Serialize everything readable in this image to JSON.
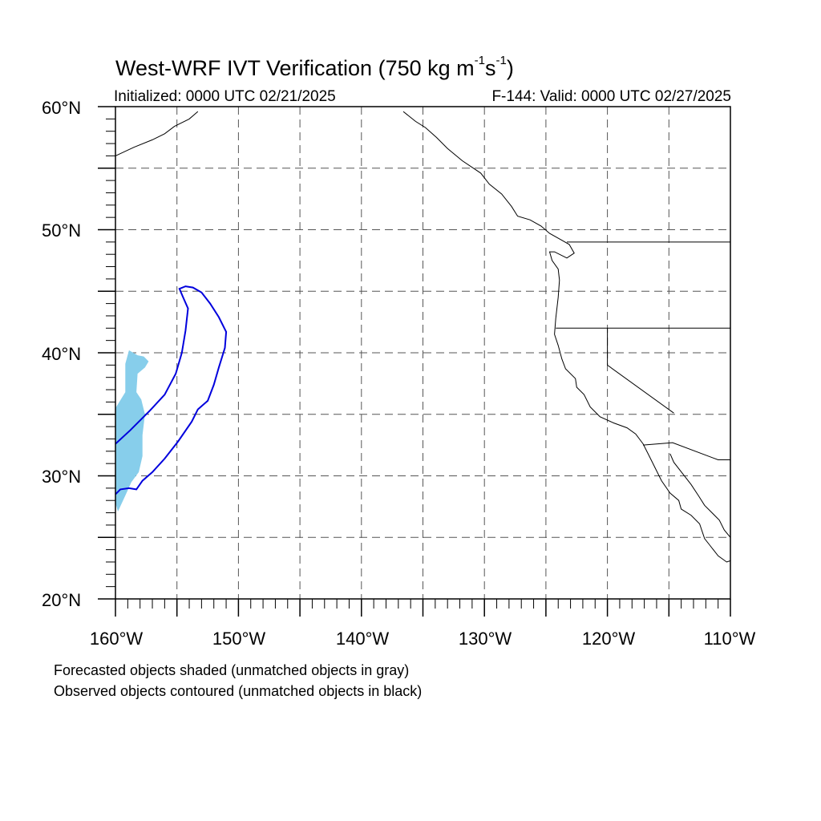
{
  "title": {
    "text": "West-WRF IVT Verification (750 kg m",
    "exp1": "-1",
    "mid": "s",
    "exp2": "-1",
    "end": ")"
  },
  "initialized": "Initialized: 0000 UTC 02/21/2025",
  "valid": "F-144: Valid: 0000 UTC 02/27/2025",
  "lat_labels": [
    "60°N",
    "50°N",
    "40°N",
    "30°N",
    "20°N"
  ],
  "lon_labels": [
    "160°W",
    "150°W",
    "140°W",
    "130°W",
    "120°W",
    "110°W"
  ],
  "notes": [
    "Forecasted objects shaded (unmatched objects in gray)",
    "Observed objects contoured (unmatched objects in black)"
  ],
  "map": {
    "lon_range": [
      -160,
      -110
    ],
    "lat_range": [
      20,
      60
    ],
    "forecast_color": "#87ceeb",
    "observed_color": "#0000dd",
    "grid": true,
    "forecast_object": [
      [
        -158.9,
        40.2
      ],
      [
        -158.2,
        39.8
      ],
      [
        -157.7,
        39.7
      ],
      [
        -157.3,
        39.3
      ],
      [
        -157.6,
        38.8
      ],
      [
        -158.2,
        38.3
      ],
      [
        -158.3,
        36.8
      ],
      [
        -157.9,
        36.2
      ],
      [
        -157.6,
        35.0
      ],
      [
        -157.8,
        33.3
      ],
      [
        -157.8,
        31.6
      ],
      [
        -158.1,
        30.3
      ],
      [
        -158.7,
        29.5
      ],
      [
        -159.2,
        28.4
      ],
      [
        -159.8,
        27.1
      ],
      [
        -160,
        27.8
      ],
      [
        -160,
        35.5
      ],
      [
        -159.2,
        36.8
      ],
      [
        -159.2,
        39.1
      ]
    ],
    "observed_object": [
      [
        -160,
        32.6
      ],
      [
        -158.8,
        33.7
      ],
      [
        -157.2,
        35.3
      ],
      [
        -156.0,
        36.6
      ],
      [
        -155.1,
        38.3
      ],
      [
        -154.6,
        40.0
      ],
      [
        -154.3,
        41.8
      ],
      [
        -154.1,
        43.6
      ],
      [
        -154.5,
        44.5
      ],
      [
        -154.8,
        45.2
      ],
      [
        -154.3,
        45.4
      ],
      [
        -153.7,
        45.3
      ],
      [
        -153.0,
        44.9
      ],
      [
        -152.3,
        44.0
      ],
      [
        -151.6,
        42.9
      ],
      [
        -151.0,
        41.7
      ],
      [
        -151.1,
        40.4
      ],
      [
        -151.6,
        38.8
      ],
      [
        -152.0,
        37.4
      ],
      [
        -152.5,
        36.1
      ],
      [
        -153.3,
        35.4
      ],
      [
        -153.8,
        34.4
      ],
      [
        -154.9,
        32.8
      ],
      [
        -156.0,
        31.4
      ],
      [
        -157.0,
        30.3
      ],
      [
        -157.8,
        29.6
      ],
      [
        -158.3,
        28.9
      ],
      [
        -158.9,
        29.0
      ],
      [
        -159.6,
        28.9
      ],
      [
        -160,
        28.5
      ]
    ],
    "coastline_mainland": [
      [
        -136.6,
        59.6
      ],
      [
        -135.6,
        58.8
      ],
      [
        -134.8,
        58.3
      ],
      [
        -133.9,
        57.5
      ],
      [
        -133.0,
        56.6
      ],
      [
        -131.8,
        55.6
      ],
      [
        -130.3,
        54.6
      ],
      [
        -129.6,
        53.7
      ],
      [
        -128.6,
        52.9
      ],
      [
        -127.8,
        51.9
      ],
      [
        -127.3,
        51.1
      ],
      [
        -126.3,
        50.8
      ],
      [
        -125.4,
        50.3
      ],
      [
        -124.7,
        49.7
      ],
      [
        -123.8,
        49.2
      ],
      [
        -123.1,
        48.8
      ],
      [
        -122.7,
        48.1
      ],
      [
        -123.3,
        47.7
      ],
      [
        -124.3,
        48.2
      ],
      [
        -124.7,
        48.2
      ],
      [
        -124.5,
        47.5
      ],
      [
        -124.0,
        46.8
      ],
      [
        -123.9,
        45.9
      ],
      [
        -124.0,
        44.5
      ],
      [
        -124.2,
        42.8
      ],
      [
        -124.3,
        41.5
      ],
      [
        -124.0,
        40.6
      ],
      [
        -123.7,
        39.5
      ],
      [
        -123.4,
        38.7
      ],
      [
        -122.6,
        37.9
      ],
      [
        -122.5,
        37.2
      ],
      [
        -121.9,
        36.6
      ],
      [
        -121.4,
        35.6
      ],
      [
        -120.6,
        34.8
      ],
      [
        -119.5,
        34.3
      ],
      [
        -118.4,
        33.9
      ],
      [
        -117.7,
        33.4
      ],
      [
        -117.1,
        32.6
      ],
      [
        -116.6,
        31.6
      ],
      [
        -116.0,
        30.4
      ],
      [
        -115.6,
        29.6
      ],
      [
        -114.9,
        28.6
      ],
      [
        -114.2,
        28.0
      ],
      [
        -114.0,
        27.3
      ],
      [
        -113.2,
        26.8
      ],
      [
        -112.5,
        26.1
      ],
      [
        -112.1,
        24.9
      ],
      [
        -111.7,
        24.4
      ],
      [
        -111.0,
        23.5
      ],
      [
        -110.3,
        23.0
      ],
      [
        -110.0,
        23.1
      ]
    ],
    "coastline_gulf": [
      [
        -114.9,
        31.8
      ],
      [
        -114.6,
        31.1
      ],
      [
        -113.9,
        30.2
      ],
      [
        -113.2,
        29.3
      ],
      [
        -112.6,
        28.4
      ],
      [
        -112.1,
        27.6
      ],
      [
        -111.5,
        27.0
      ],
      [
        -110.9,
        26.4
      ],
      [
        -110.5,
        25.6
      ],
      [
        -110.0,
        25.0
      ]
    ],
    "us_canada_border": [
      [
        -123.3,
        49.0
      ],
      [
        -110,
        49.0
      ]
    ],
    "or_ca_border": [
      [
        -124.2,
        42.0
      ],
      [
        -110,
        42.0
      ]
    ],
    "us_mexico_border": [
      [
        -117.1,
        32.5
      ],
      [
        -114.7,
        32.7
      ],
      [
        -111.0,
        31.3
      ],
      [
        -110,
        31.3
      ]
    ],
    "ca_nv_border": [
      [
        -120.0,
        42.0
      ],
      [
        -120.0,
        39.0
      ],
      [
        -114.6,
        35.1
      ]
    ],
    "alaska_coast": [
      [
        -160,
        56.0
      ],
      [
        -158.5,
        56.7
      ],
      [
        -157.0,
        57.3
      ],
      [
        -156.0,
        57.8
      ],
      [
        -155.2,
        58.4
      ],
      [
        -154.0,
        59.0
      ],
      [
        -153.3,
        59.6
      ]
    ]
  }
}
